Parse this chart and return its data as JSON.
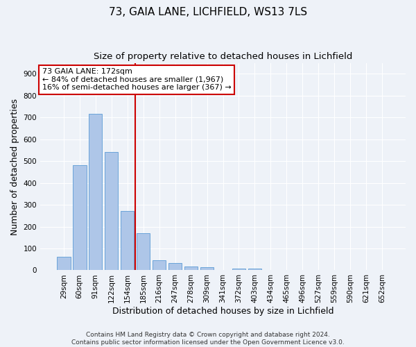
{
  "title1": "73, GAIA LANE, LICHFIELD, WS13 7LS",
  "title2": "Size of property relative to detached houses in Lichfield",
  "xlabel": "Distribution of detached houses by size in Lichfield",
  "ylabel": "Number of detached properties",
  "categories": [
    "29sqm",
    "60sqm",
    "91sqm",
    "122sqm",
    "154sqm",
    "185sqm",
    "216sqm",
    "247sqm",
    "278sqm",
    "309sqm",
    "341sqm",
    "372sqm",
    "403sqm",
    "434sqm",
    "465sqm",
    "496sqm",
    "527sqm",
    "559sqm",
    "590sqm",
    "621sqm",
    "652sqm"
  ],
  "values": [
    62,
    481,
    718,
    543,
    272,
    170,
    47,
    33,
    17,
    13,
    0,
    7,
    7,
    0,
    0,
    0,
    0,
    0,
    0,
    0,
    0
  ],
  "bar_color": "#aec6e8",
  "bar_edge_color": "#5b9bd5",
  "vline_x_index": 4.5,
  "vline_color": "#cc0000",
  "annotation_text": "73 GAIA LANE: 172sqm\n← 84% of detached houses are smaller (1,967)\n16% of semi-detached houses are larger (367) →",
  "annotation_box_color": "#ffffff",
  "annotation_box_edge_color": "#cc0000",
  "ylim": [
    0,
    950
  ],
  "yticks": [
    0,
    100,
    200,
    300,
    400,
    500,
    600,
    700,
    800,
    900
  ],
  "footer1": "Contains HM Land Registry data © Crown copyright and database right 2024.",
  "footer2": "Contains public sector information licensed under the Open Government Licence v3.0.",
  "bg_color": "#eef2f8",
  "grid_color": "#ffffff",
  "title1_fontsize": 11,
  "title2_fontsize": 9.5,
  "axis_label_fontsize": 9,
  "tick_fontsize": 7.5,
  "footer_fontsize": 6.5,
  "annotation_fontsize": 8
}
